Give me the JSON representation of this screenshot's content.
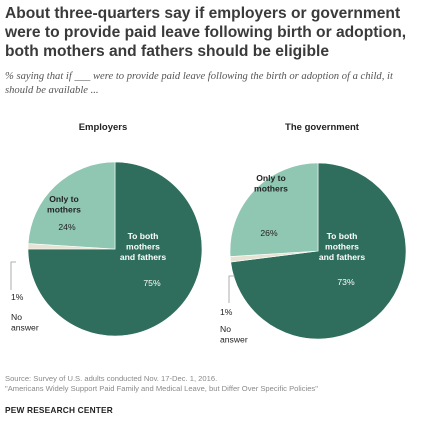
{
  "header": {
    "title": "About three-quarters say if employers or government were to provide paid leave following birth or adoption, both mothers and fathers should be eligible",
    "subtitle": "% saying that if ___ were to provide paid leave following the birth or adoption of a child, it should be available ..."
  },
  "colors": {
    "both": "#2f6e5c",
    "mothers": "#8fc7b3",
    "no_answer": "#e7e3d4",
    "leader_line": "#999999"
  },
  "chart_data": [
    {
      "type": "pie",
      "title": "Employers",
      "slices": [
        {
          "label_lines": [
            "To both",
            "mothers",
            "and fathers"
          ],
          "value": 75,
          "value_label": "75%"
        },
        {
          "label_lines": [
            "No",
            "answer"
          ],
          "value": 1,
          "value_label": "1%"
        },
        {
          "label_lines": [
            "Only to",
            "mothers"
          ],
          "value": 24,
          "value_label": "24%"
        }
      ]
    },
    {
      "type": "pie",
      "title": "The government",
      "slices": [
        {
          "label_lines": [
            "To both",
            "mothers",
            "and fathers"
          ],
          "value": 73,
          "value_label": "73%"
        },
        {
          "label_lines": [
            "No",
            "answer"
          ],
          "value": 1,
          "value_label": "1%"
        },
        {
          "label_lines": [
            "Only to",
            "mothers"
          ],
          "value": 26,
          "value_label": "26%"
        }
      ]
    }
  ],
  "footer": {
    "source_line1": "Source: Survey of U.S. adults conducted Nov. 17-Dec. 1, 2016.",
    "source_line2": "\"Americans Widely Support Paid Family and Medical Leave, but Differ Over Specific Policies\"",
    "org": "PEW RESEARCH CENTER"
  }
}
